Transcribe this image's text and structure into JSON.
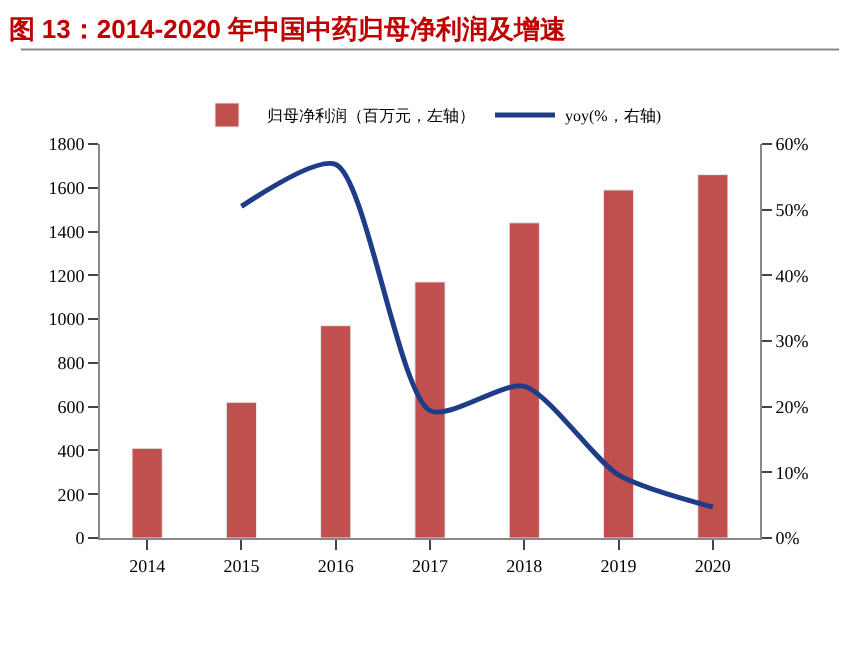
{
  "chart_data": {
    "type": "bar",
    "title": "图 13：2014-2020 年中国中药归母净利润及增速",
    "categories": [
      "2014",
      "2015",
      "2016",
      "2017",
      "2018",
      "2019",
      "2020"
    ],
    "series": [
      {
        "name": "归母净利润（百万元，左轴）",
        "color": "#c0504d",
        "values": [
          410,
          620,
          970,
          1170,
          1440,
          1590,
          1660
        ]
      },
      {
        "name": "yoy(%，右轴)",
        "color": "#1f3c88",
        "type": "line",
        "axis": "y2",
        "values": [
          null,
          50.5,
          56.9,
          19.4,
          23.1,
          9.6,
          4.7
        ]
      }
    ],
    "ylim": [
      0,
      1800
    ],
    "yticks": [
      0,
      200,
      400,
      600,
      800,
      1000,
      1200,
      1400,
      1600,
      1800
    ],
    "y2lim": [
      0,
      60
    ],
    "y2ticks": [
      {
        "value": 0,
        "label": "0%"
      },
      {
        "value": 10,
        "label": "10%"
      },
      {
        "value": 20,
        "label": "20%"
      },
      {
        "value": 30,
        "label": "30%"
      },
      {
        "value": 40,
        "label": "40%"
      },
      {
        "value": 50,
        "label": "50%"
      },
      {
        "value": 60,
        "label": "60%"
      }
    ],
    "legend": "top",
    "marker": "none",
    "line_style": "solid"
  }
}
